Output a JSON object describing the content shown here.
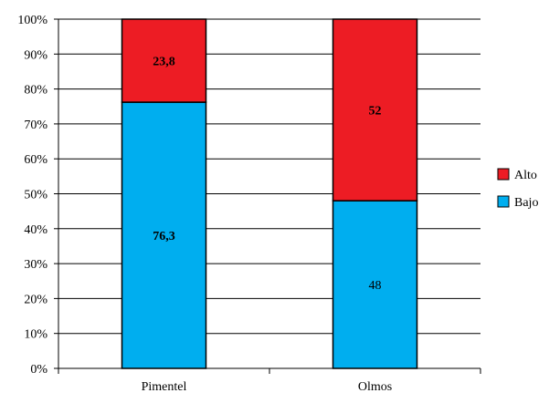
{
  "chart_data": {
    "type": "bar",
    "stacked": true,
    "percent_stacked": true,
    "categories": [
      "Pimentel",
      "Olmos"
    ],
    "series": [
      {
        "name": "Bajo",
        "color": "#00AEEF",
        "values": [
          76.3,
          48
        ],
        "labels": [
          "76,3",
          "48"
        ],
        "label_bold": [
          true,
          false
        ]
      },
      {
        "name": "Alto",
        "color": "#ED1C24",
        "values": [
          23.8,
          52
        ],
        "labels": [
          "23,8",
          "52"
        ],
        "label_bold": [
          true,
          true
        ]
      }
    ],
    "y_ticks": [
      "0%",
      "10%",
      "20%",
      "30%",
      "40%",
      "50%",
      "60%",
      "70%",
      "80%",
      "90%",
      "100%"
    ],
    "ylim": [
      0,
      100
    ],
    "grid": true,
    "legend": [
      "Alto",
      "Bajo"
    ],
    "legend_position": "right",
    "title": "",
    "xlabel": "",
    "ylabel": ""
  }
}
